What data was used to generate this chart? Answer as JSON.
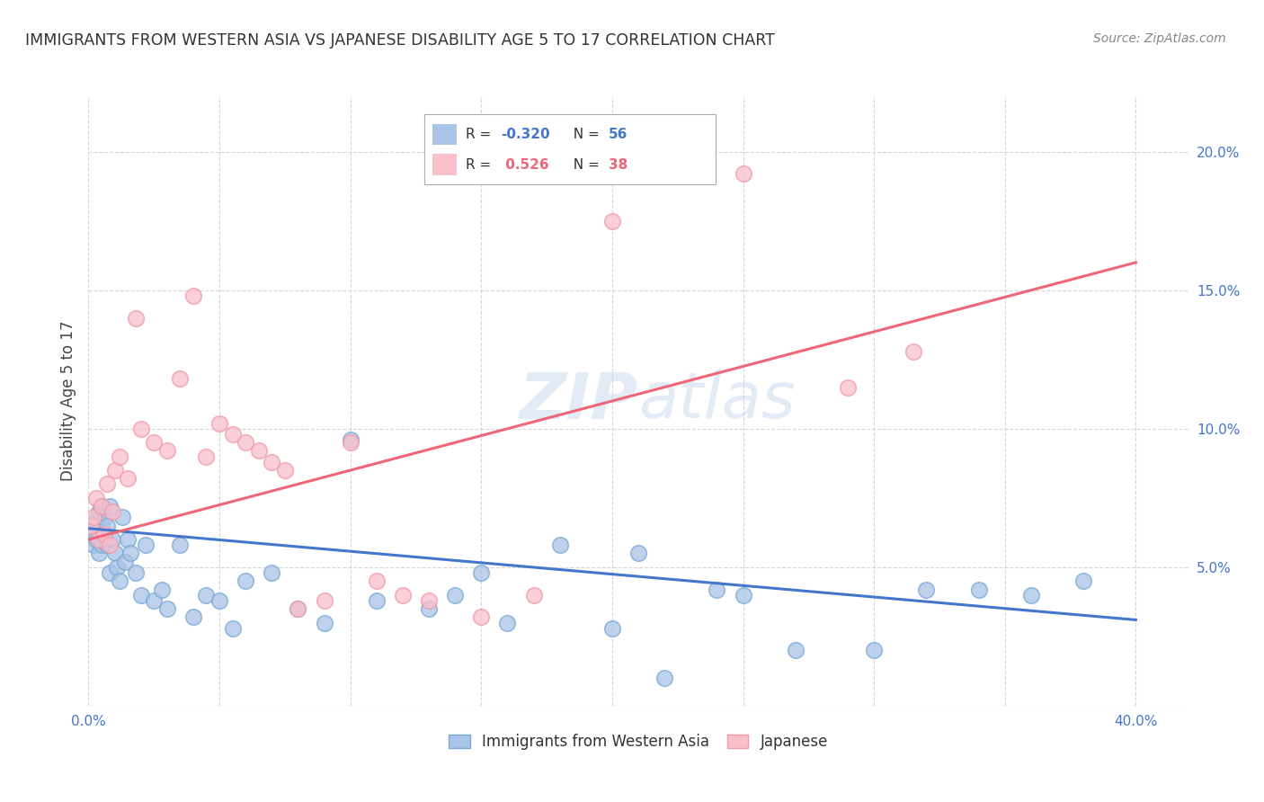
{
  "title": "IMMIGRANTS FROM WESTERN ASIA VS JAPANESE DISABILITY AGE 5 TO 17 CORRELATION CHART",
  "source": "Source: ZipAtlas.com",
  "ylabel": "Disability Age 5 to 17",
  "xlim": [
    0.0,
    0.42
  ],
  "ylim": [
    0.0,
    0.22
  ],
  "xticks": [
    0.0,
    0.05,
    0.1,
    0.15,
    0.2,
    0.25,
    0.3,
    0.35,
    0.4
  ],
  "yticks": [
    0.0,
    0.05,
    0.1,
    0.15,
    0.2
  ],
  "background_color": "#ffffff",
  "watermark": "ZIPatlas",
  "blue_face_color": "#aac4e8",
  "blue_edge_color": "#7aaad4",
  "pink_face_color": "#f9c0cb",
  "pink_edge_color": "#f09aaa",
  "blue_line_color": "#4477cc",
  "pink_line_color": "#ee6677",
  "blue_R": -0.32,
  "blue_N": 56,
  "pink_R": 0.526,
  "pink_N": 38,
  "legend_label_blue": "Immigrants from Western Asia",
  "legend_label_pink": "Japanese",
  "blue_scatter_x": [
    0.001,
    0.002,
    0.002,
    0.003,
    0.003,
    0.004,
    0.004,
    0.005,
    0.005,
    0.006,
    0.006,
    0.007,
    0.007,
    0.008,
    0.008,
    0.009,
    0.01,
    0.011,
    0.012,
    0.013,
    0.014,
    0.015,
    0.016,
    0.018,
    0.02,
    0.022,
    0.025,
    0.028,
    0.03,
    0.035,
    0.04,
    0.045,
    0.05,
    0.055,
    0.06,
    0.07,
    0.08,
    0.09,
    0.1,
    0.11,
    0.13,
    0.14,
    0.15,
    0.16,
    0.18,
    0.2,
    0.21,
    0.22,
    0.24,
    0.25,
    0.27,
    0.3,
    0.32,
    0.34,
    0.36,
    0.38
  ],
  "blue_scatter_y": [
    0.065,
    0.062,
    0.058,
    0.067,
    0.06,
    0.07,
    0.055,
    0.072,
    0.058,
    0.068,
    0.062,
    0.058,
    0.065,
    0.072,
    0.048,
    0.06,
    0.055,
    0.05,
    0.045,
    0.068,
    0.052,
    0.06,
    0.055,
    0.048,
    0.04,
    0.058,
    0.038,
    0.042,
    0.035,
    0.058,
    0.032,
    0.04,
    0.038,
    0.028,
    0.045,
    0.048,
    0.035,
    0.03,
    0.096,
    0.038,
    0.035,
    0.04,
    0.048,
    0.03,
    0.058,
    0.028,
    0.055,
    0.01,
    0.042,
    0.04,
    0.02,
    0.02,
    0.042,
    0.042,
    0.04,
    0.045
  ],
  "pink_scatter_x": [
    0.001,
    0.002,
    0.003,
    0.004,
    0.005,
    0.006,
    0.007,
    0.008,
    0.009,
    0.01,
    0.012,
    0.015,
    0.018,
    0.02,
    0.025,
    0.03,
    0.035,
    0.04,
    0.045,
    0.05,
    0.055,
    0.06,
    0.065,
    0.07,
    0.075,
    0.08,
    0.09,
    0.1,
    0.11,
    0.12,
    0.13,
    0.15,
    0.17,
    0.2,
    0.22,
    0.25,
    0.29,
    0.315
  ],
  "pink_scatter_y": [
    0.065,
    0.068,
    0.075,
    0.06,
    0.072,
    0.062,
    0.08,
    0.058,
    0.07,
    0.085,
    0.09,
    0.082,
    0.14,
    0.1,
    0.095,
    0.092,
    0.118,
    0.148,
    0.09,
    0.102,
    0.098,
    0.095,
    0.092,
    0.088,
    0.085,
    0.035,
    0.038,
    0.095,
    0.045,
    0.04,
    0.038,
    0.032,
    0.04,
    0.175,
    0.195,
    0.192,
    0.115,
    0.128
  ],
  "blue_trend_x": [
    0.0,
    0.4
  ],
  "blue_trend_y": [
    0.064,
    0.031
  ],
  "pink_trend_x": [
    0.0,
    0.4
  ],
  "pink_trend_y": [
    0.06,
    0.16
  ]
}
